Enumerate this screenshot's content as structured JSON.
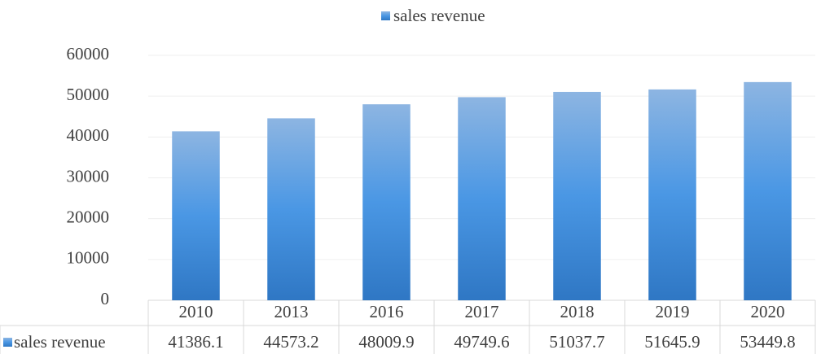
{
  "chart_data": {
    "type": "bar",
    "categories": [
      "2010",
      "2013",
      "2016",
      "2017",
      "2018",
      "2019",
      "2020"
    ],
    "series": [
      {
        "name": "sales revenue",
        "color": "#4a97e4",
        "values": [
          41386.1,
          44573.2,
          48009.9,
          49749.6,
          51037.7,
          51645.9,
          53449.8
        ]
      }
    ],
    "ylim": [
      0,
      60000
    ],
    "yticks": [
      0,
      10000,
      20000,
      30000,
      40000,
      50000,
      60000
    ],
    "grid": true,
    "legend": "top",
    "data_table": true
  }
}
